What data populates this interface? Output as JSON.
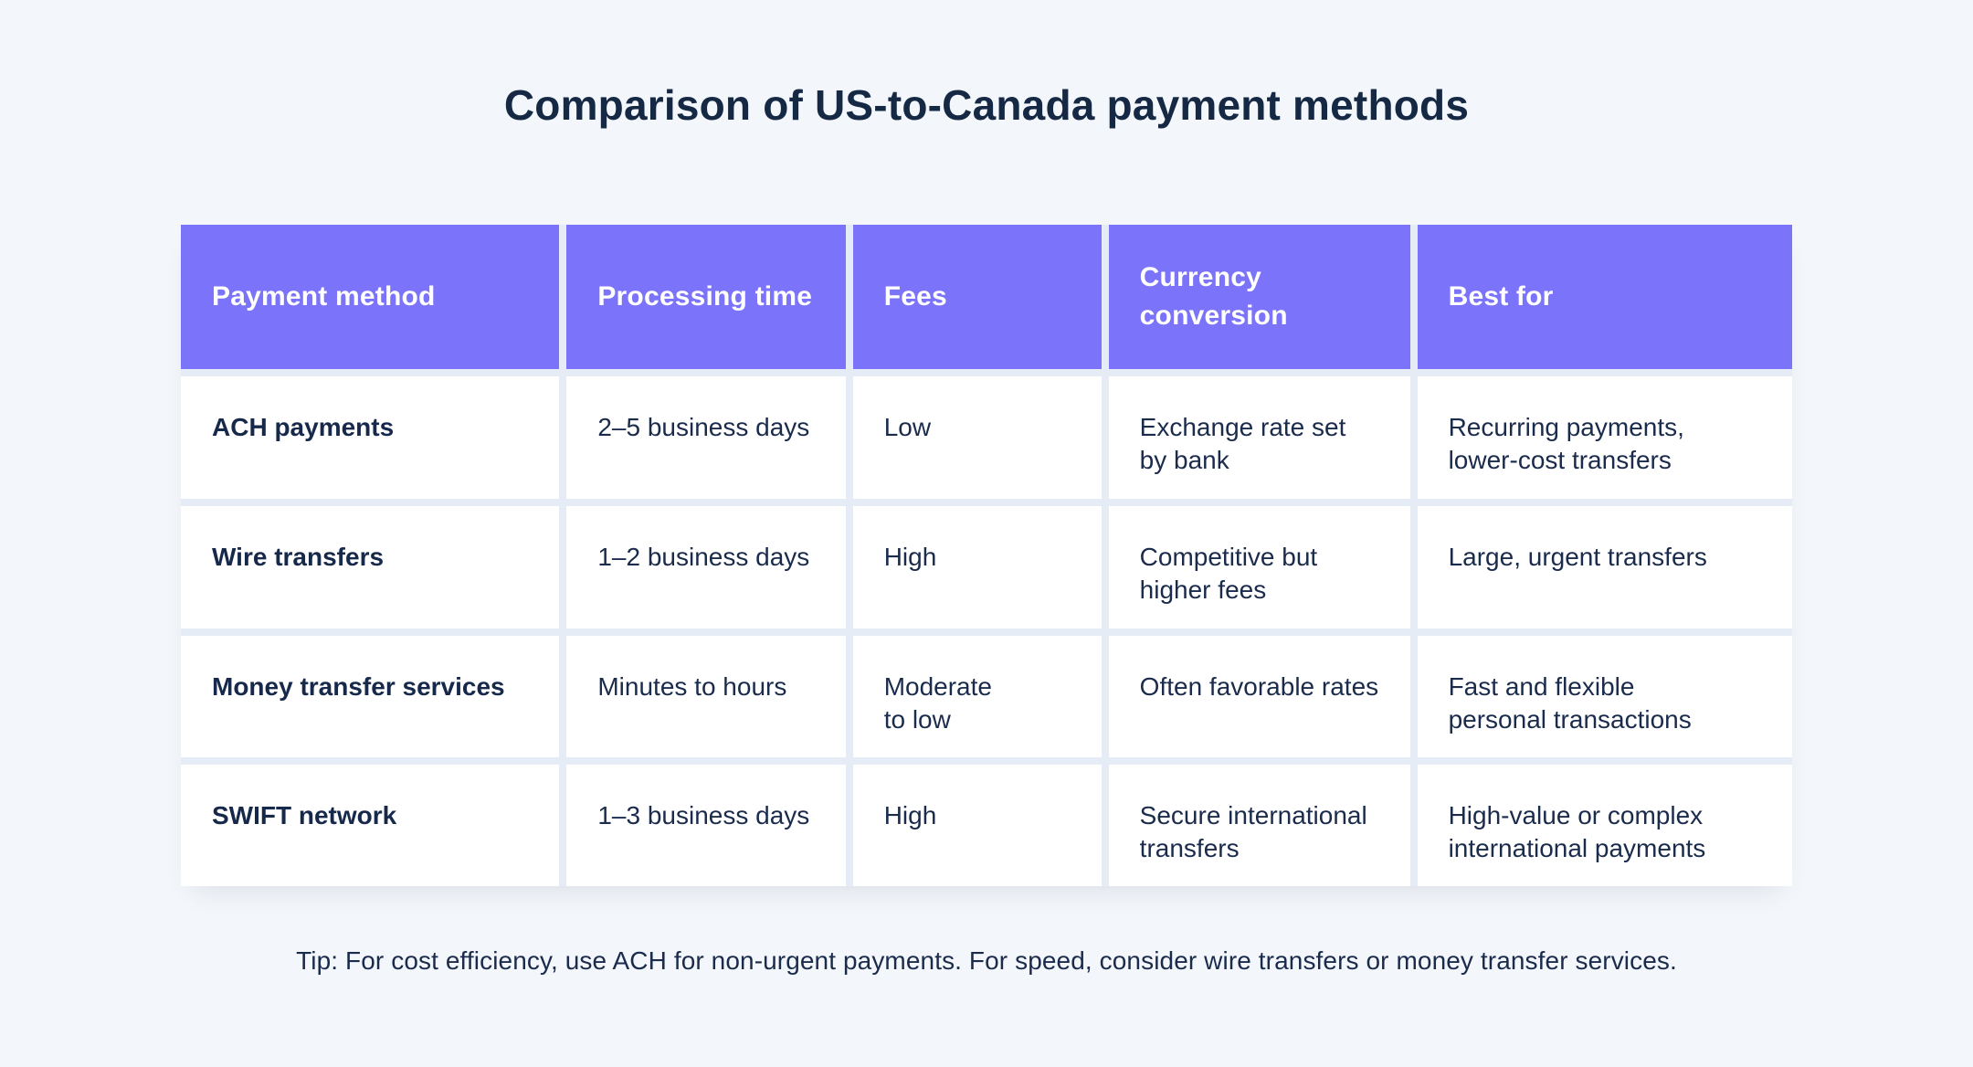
{
  "page": {
    "background_color": "#F3F6FA"
  },
  "colors": {
    "header_bg": "#7B73FA",
    "header_text": "#FFFFFF",
    "body_text": "#1A2B4C",
    "title_text": "#152844",
    "cell_bg": "#FFFFFF",
    "grid_gap": "#E6ECF6"
  },
  "chart_data": {
    "type": "table",
    "title": "Comparison of US-to-Canada payment methods",
    "columns": [
      "Payment method",
      "Processing time",
      "Fees",
      "Currency conversion",
      "Best for"
    ],
    "rows": [
      [
        "ACH payments",
        "2–5 business days",
        "Low",
        "Exchange rate set\nby bank",
        "Recurring payments,\nlower-cost transfers"
      ],
      [
        "Wire transfers",
        "1–2 business days",
        "High",
        "Competitive but\nhigher fees",
        "Large, urgent transfers"
      ],
      [
        "Money transfer services",
        "Minutes to hours",
        "Moderate\nto low",
        "Often favorable rates",
        "Fast and flexible\npersonal transactions"
      ],
      [
        "SWIFT network",
        "1–3 business days",
        "High",
        "Secure international\ntransfers",
        "High-value or complex\ninternational payments"
      ]
    ],
    "note": "Tip: For cost efficiency, use ACH for non-urgent payments. For speed, consider wire transfers or money transfer services.",
    "layout": {
      "header_position": "top",
      "grid": "light gaps between white cells",
      "first_column_bold": true
    }
  }
}
